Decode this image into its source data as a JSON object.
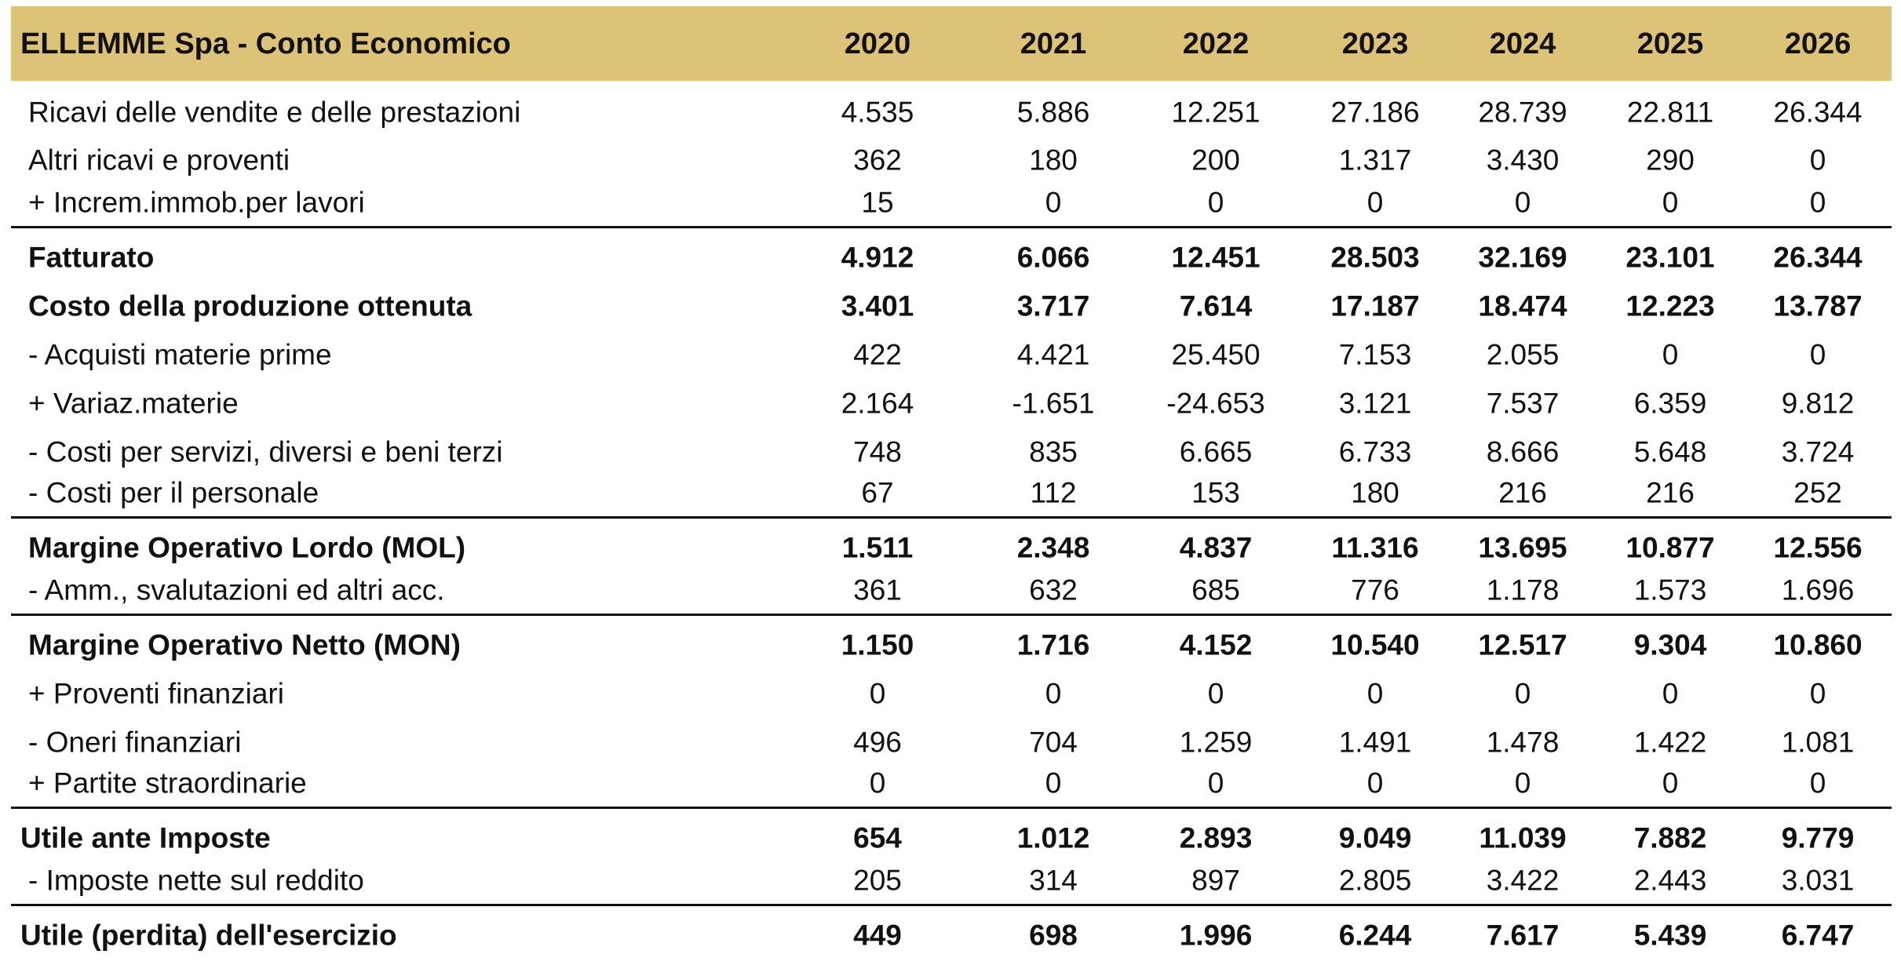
{
  "table": {
    "title": "ELLEMME Spa - Conto Economico",
    "years": [
      "2020",
      "2021",
      "2022",
      "2023",
      "2024",
      "2025",
      "2026"
    ],
    "rows": [
      {
        "label": "Ricavi delle vendite e delle prestazioni",
        "values": [
          "4.535",
          "5.886",
          "12.251",
          "27.186",
          "28.739",
          "22.811",
          "26.344"
        ],
        "bold": false
      },
      {
        "label": "Altri ricavi e proventi",
        "values": [
          "362",
          "180",
          "200",
          "1.317",
          "3.430",
          "290",
          "0"
        ],
        "bold": false
      },
      {
        "label": "+ Increm.immob.per lavori",
        "values": [
          "15",
          "0",
          "0",
          "0",
          "0",
          "0",
          "0"
        ],
        "bold": false
      },
      {
        "label": "Fatturato",
        "values": [
          "4.912",
          "6.066",
          "12.451",
          "28.503",
          "32.169",
          "23.101",
          "26.344"
        ],
        "bold": true
      },
      {
        "label": "Costo della produzione ottenuta",
        "values": [
          "3.401",
          "3.717",
          "7.614",
          "17.187",
          "18.474",
          "12.223",
          "13.787"
        ],
        "bold": true
      },
      {
        "label": "- Acquisti materie prime",
        "values": [
          "422",
          "4.421",
          "25.450",
          "7.153",
          "2.055",
          "0",
          "0"
        ],
        "bold": false
      },
      {
        "label": "+ Variaz.materie",
        "values": [
          "2.164",
          "-1.651",
          "-24.653",
          "3.121",
          "7.537",
          "6.359",
          "9.812"
        ],
        "bold": false
      },
      {
        "label": "- Costi per servizi, diversi e beni terzi",
        "values": [
          "748",
          "835",
          "6.665",
          "6.733",
          "8.666",
          "5.648",
          "3.724"
        ],
        "bold": false
      },
      {
        "label": "- Costi per il personale",
        "values": [
          "67",
          "112",
          "153",
          "180",
          "216",
          "216",
          "252"
        ],
        "bold": false
      },
      {
        "label": "Margine Operativo Lordo (MOL)",
        "values": [
          "1.511",
          "2.348",
          "4.837",
          "11.316",
          "13.695",
          "10.877",
          "12.556"
        ],
        "bold": true
      },
      {
        "label": "- Amm., svalutazioni ed altri acc.",
        "values": [
          "361",
          "632",
          "685",
          "776",
          "1.178",
          "1.573",
          "1.696"
        ],
        "bold": false
      },
      {
        "label": "Margine Operativo Netto (MON)",
        "values": [
          "1.150",
          "1.716",
          "4.152",
          "10.540",
          "12.517",
          "9.304",
          "10.860"
        ],
        "bold": true
      },
      {
        "label": "+ Proventi finanziari",
        "values": [
          "0",
          "0",
          "0",
          "0",
          "0",
          "0",
          "0"
        ],
        "bold": false
      },
      {
        "label": "- Oneri finanziari",
        "values": [
          "496",
          "704",
          "1.259",
          "1.491",
          "1.478",
          "1.422",
          "1.081"
        ],
        "bold": false
      },
      {
        "label": "+ Partite straordinarie",
        "values": [
          "0",
          "0",
          "0",
          "0",
          "0",
          "0",
          "0"
        ],
        "bold": false
      },
      {
        "label": "Utile ante Imposte",
        "values": [
          "654",
          "1.012",
          "2.893",
          "9.049",
          "11.039",
          "7.882",
          "9.779"
        ],
        "bold": true
      },
      {
        "label": "- Imposte nette sul reddito",
        "values": [
          "205",
          "314",
          "897",
          "2.805",
          "3.422",
          "2.443",
          "3.031"
        ],
        "bold": false
      },
      {
        "label": "Utile (perdita) dell'esercizio",
        "values": [
          "449",
          "698",
          "1.996",
          "6.244",
          "7.617",
          "5.439",
          "6.747"
        ],
        "bold": true
      }
    ]
  },
  "colors": {
    "header_bg": "#dcc378",
    "text": "#111111",
    "rule": "#111111"
  }
}
